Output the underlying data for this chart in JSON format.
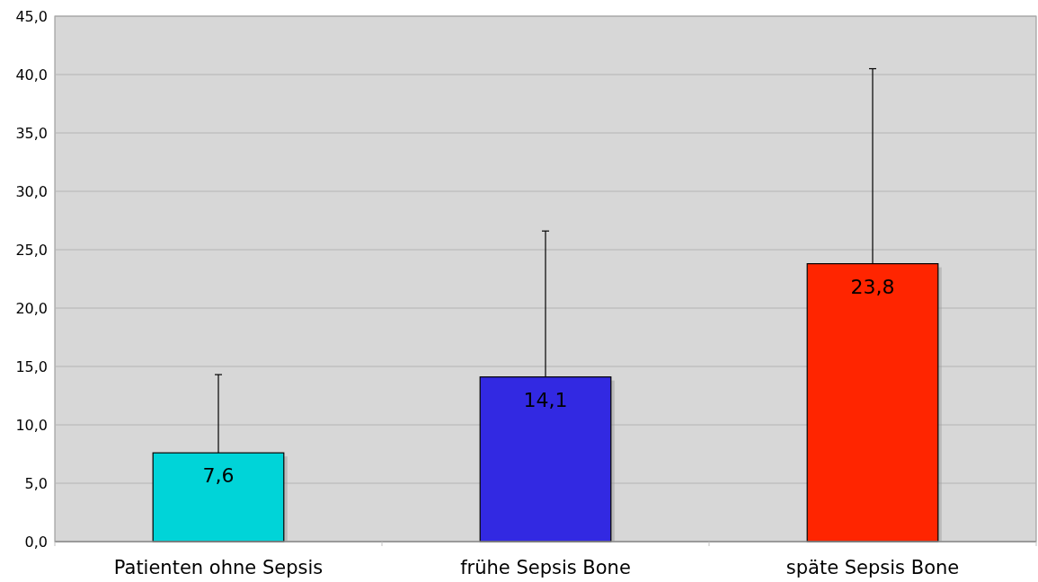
{
  "chart_data": {
    "type": "bar",
    "categories": [
      "Patienten ohne Sepsis",
      "frühe Sepsis Bone",
      "späte Sepsis Bone"
    ],
    "values": [
      7.6,
      14.1,
      23.8
    ],
    "colors": [
      "#00d4d8",
      "#3229e2",
      "#ff2500"
    ],
    "errors": [
      [
        7.6,
        14.3
      ],
      [
        14.1,
        26.6
      ],
      [
        23.8,
        40.5
      ]
    ],
    "value_labels": [
      "7,6",
      "14,1",
      "23,8"
    ],
    "ylim": [
      0,
      45
    ],
    "yticks": [
      {
        "value": 0,
        "label": "0,0"
      },
      {
        "value": 5,
        "label": "5,0"
      },
      {
        "value": 10,
        "label": "10,0"
      },
      {
        "value": 15,
        "label": "15,0"
      },
      {
        "value": 20,
        "label": "20,0"
      },
      {
        "value": 25,
        "label": "25,0"
      },
      {
        "value": 30,
        "label": "30,0"
      },
      {
        "value": 35,
        "label": "35,0"
      },
      {
        "value": 40,
        "label": "40,0"
      },
      {
        "value": 45,
        "label": "45,0"
      }
    ],
    "grid": "y"
  }
}
